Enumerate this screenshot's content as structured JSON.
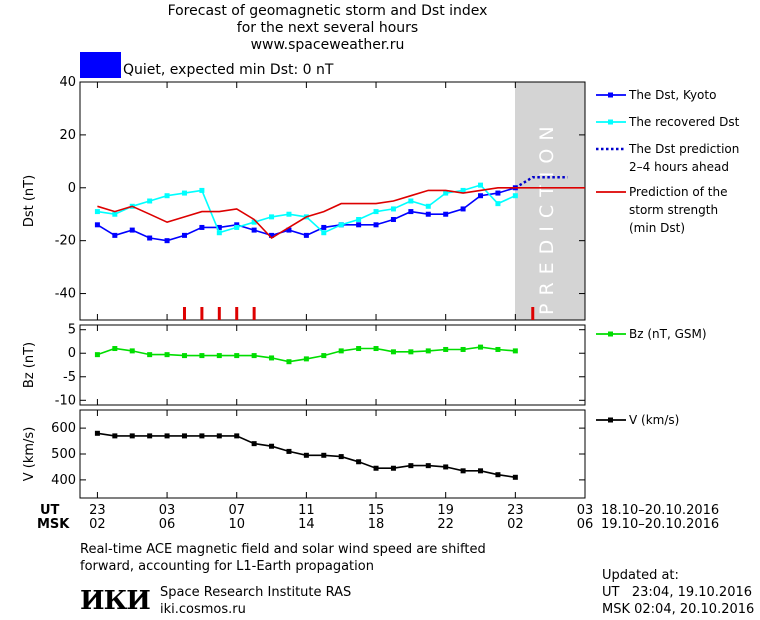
{
  "header": {
    "title_line1": "Forecast of geomagnetic storm and Dst index",
    "title_line2": "for the next several hours",
    "title_line3": "www.spaceweather.ru",
    "status_text": "Quiet, expected min Dst: 0 nT",
    "status_color": "#0000ff"
  },
  "prediction_label": "PREDICTION",
  "time_axis": {
    "ut_label": "UT",
    "msk_label": "MSK",
    "ut_ticks": [
      "23",
      "03",
      "07",
      "11",
      "15",
      "19",
      "23",
      "03"
    ],
    "msk_ticks": [
      "02",
      "06",
      "10",
      "14",
      "18",
      "22",
      "02",
      "06"
    ],
    "ut_range": "18.10–20.10.2016",
    "msk_range": "19.10–20.10.2016"
  },
  "footer": {
    "note_line1": "Real-time ACE magnetic field and solar wind speed are shifted",
    "note_line2": "forward, accounting for L1-Earth propagation",
    "logo_text": "ИКИ",
    "institute": "Space Research Institute RAS",
    "site": "iki.cosmos.ru",
    "updated_label": "Updated at:",
    "updated_ut": "UT   23:04, 19.10.2016",
    "updated_msk": "MSK 02:04, 20.10.2016"
  },
  "chart_data": [
    {
      "type": "line",
      "ylabel": "Dst (nT)",
      "ylim": [
        -50,
        40
      ],
      "yticks": [
        40,
        20,
        0,
        -20,
        -40
      ],
      "xlim": [
        -1,
        28
      ],
      "x_unit": "hours after 23 UT 18.10.2016",
      "grid": false,
      "legend_position": "right",
      "series": [
        {
          "name": "The Dst, Kyoto",
          "color": "#0000ff",
          "marker": "square",
          "style": "solid",
          "x": [
            0,
            1,
            2,
            3,
            4,
            5,
            6,
            7,
            8,
            9,
            10,
            11,
            12,
            13,
            14,
            15,
            16,
            17,
            18,
            19,
            20,
            21,
            22,
            23,
            24
          ],
          "values": [
            -14,
            -18,
            -16,
            -19,
            -20,
            -18,
            -15,
            -15,
            -14,
            -16,
            -18,
            -16,
            -18,
            -15,
            -14,
            -14,
            -14,
            -12,
            -9,
            -10,
            -10,
            -8,
            -3,
            -2,
            0
          ]
        },
        {
          "name": "The recovered Dst",
          "color": "#00ffff",
          "marker": "square",
          "style": "solid",
          "x": [
            0,
            1,
            2,
            3,
            4,
            5,
            6,
            7,
            8,
            9,
            10,
            11,
            12,
            13,
            14,
            15,
            16,
            17,
            18,
            19,
            20,
            21,
            22,
            23,
            24
          ],
          "values": [
            -9,
            -10,
            -7,
            -5,
            -3,
            -2,
            -1,
            -17,
            -15,
            -13,
            -11,
            -10,
            -11,
            -17,
            -14,
            -12,
            -9,
            -8,
            -5,
            -7,
            -2,
            -1,
            1,
            -6,
            -3
          ]
        },
        {
          "name": "The Dst prediction\n2–4 hours ahead",
          "color": "#0000cc",
          "marker": "none",
          "style": "dotted",
          "x": [
            24,
            25,
            26,
            27
          ],
          "values": [
            0,
            4,
            4,
            4
          ]
        },
        {
          "name": "Prediction of the\nstorm strength\n(min Dst)",
          "color": "#dd0000",
          "marker": "none",
          "style": "solid",
          "x": [
            0,
            1,
            2,
            3,
            4,
            5,
            6,
            7,
            8,
            9,
            10,
            11,
            12,
            13,
            14,
            15,
            16,
            17,
            18,
            19,
            20,
            21,
            22,
            23,
            24,
            25,
            26,
            27,
            28
          ],
          "values": [
            -7,
            -9,
            -7,
            -10,
            -13,
            -11,
            -9,
            -9,
            -8,
            -12,
            -19,
            -15,
            -11,
            -9,
            -6,
            -6,
            -6,
            -5,
            -3,
            -1,
            -1,
            -2,
            -1,
            0,
            0,
            0,
            0,
            0,
            0
          ]
        }
      ],
      "storm_markers_x": [
        5,
        6,
        7,
        8,
        9,
        25
      ]
    },
    {
      "type": "line",
      "ylabel": "Bz (nT)",
      "ylim": [
        -11,
        6
      ],
      "yticks": [
        5,
        0,
        -5,
        -10
      ],
      "xlim": [
        -1,
        28
      ],
      "series": [
        {
          "name": "Bz (nT, GSM)",
          "color": "#00dd00",
          "marker": "square",
          "style": "solid",
          "x": [
            0,
            1,
            2,
            3,
            4,
            5,
            6,
            7,
            8,
            9,
            10,
            11,
            12,
            13,
            14,
            15,
            16,
            17,
            18,
            19,
            20,
            21,
            22,
            23,
            24
          ],
          "values": [
            -0.3,
            1,
            0.5,
            -0.3,
            -0.3,
            -0.5,
            -0.5,
            -0.5,
            -0.5,
            -0.5,
            -1,
            -1.8,
            -1.2,
            -0.5,
            0.5,
            1,
            1,
            0.3,
            0.3,
            0.5,
            0.8,
            0.8,
            1.3,
            0.8,
            0.5
          ]
        }
      ]
    },
    {
      "type": "line",
      "ylabel": "V (km/s)",
      "ylim": [
        330,
        670
      ],
      "yticks": [
        600,
        500,
        400
      ],
      "xlim": [
        -1,
        28
      ],
      "series": [
        {
          "name": "V (km/s)",
          "color": "#000000",
          "marker": "square",
          "style": "solid",
          "x": [
            0,
            1,
            2,
            3,
            4,
            5,
            6,
            7,
            8,
            9,
            10,
            11,
            12,
            13,
            14,
            15,
            16,
            17,
            18,
            19,
            20,
            21,
            22,
            23,
            24
          ],
          "values": [
            580,
            570,
            570,
            570,
            570,
            570,
            570,
            570,
            570,
            540,
            530,
            510,
            495,
            495,
            490,
            470,
            445,
            445,
            455,
            455,
            450,
            435,
            435,
            420,
            410
          ]
        }
      ]
    }
  ]
}
